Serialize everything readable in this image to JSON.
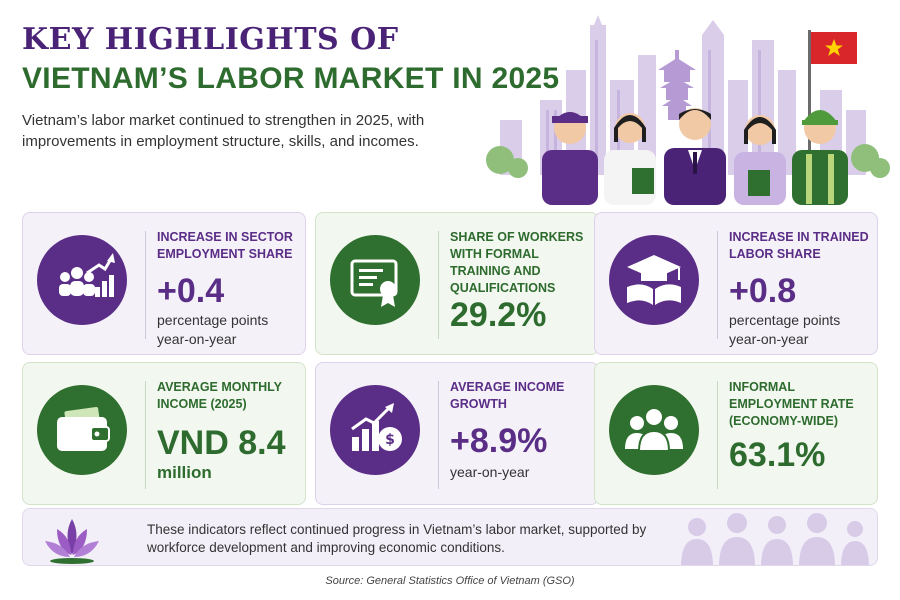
{
  "header": {
    "title_line1": "KEY HIGHLIGHTS OF",
    "title_line2": "VIETNAM’S LABOR MARKET IN 2025",
    "subtitle": "Vietnam’s labor market continued to strengthen in 2025, with improvements in employment structure, skills, and incomes."
  },
  "colors": {
    "purple": "#5a2d86",
    "green": "#2e6b2e",
    "card_purple_bg": "#f5f1f9",
    "card_green_bg": "#f2f7ef"
  },
  "cards": [
    {
      "title": "INCREASE IN SECTOR EMPLOYMENT SHARE",
      "value": "+0.4",
      "note": "percentage points year-on-year",
      "icon": "people-growth-chart-icon"
    },
    {
      "title": "SHARE OF WORKERS WITH FORMAL TRAINING AND QUALIFICATIONS",
      "value": "29.2%",
      "note": "",
      "icon": "certificate-icon"
    },
    {
      "title": "INCREASE IN TRAINED LABOR SHARE",
      "value": "+0.8",
      "note": "percentage points year-on-year",
      "icon": "graduation-cap-book-icon"
    },
    {
      "title": "AVERAGE MONTHLY INCOME (2025)",
      "value": "VND 8.4",
      "note": "million",
      "icon": "wallet-icon"
    },
    {
      "title": "AVERAGE INCOME GROWTH",
      "value": "+8.9%",
      "note": "year-on-year",
      "icon": "growth-chart-dollar-icon"
    },
    {
      "title": "INFORMAL EMPLOYMENT RATE (ECONOMY-WIDE)",
      "value": "63.1%",
      "note": "",
      "icon": "group-people-icon"
    }
  ],
  "footer": {
    "text": "These indicators reflect continued progress in Vietnam’s labor market, supported by workforce development and improving economic conditions.",
    "icon": "lotus-icon"
  },
  "source": "Source: General Statistics Office of Vietnam (GSO)",
  "hero": {
    "icon": "workers-city-skyline-illustration",
    "flag": "vietnam-flag-icon"
  }
}
